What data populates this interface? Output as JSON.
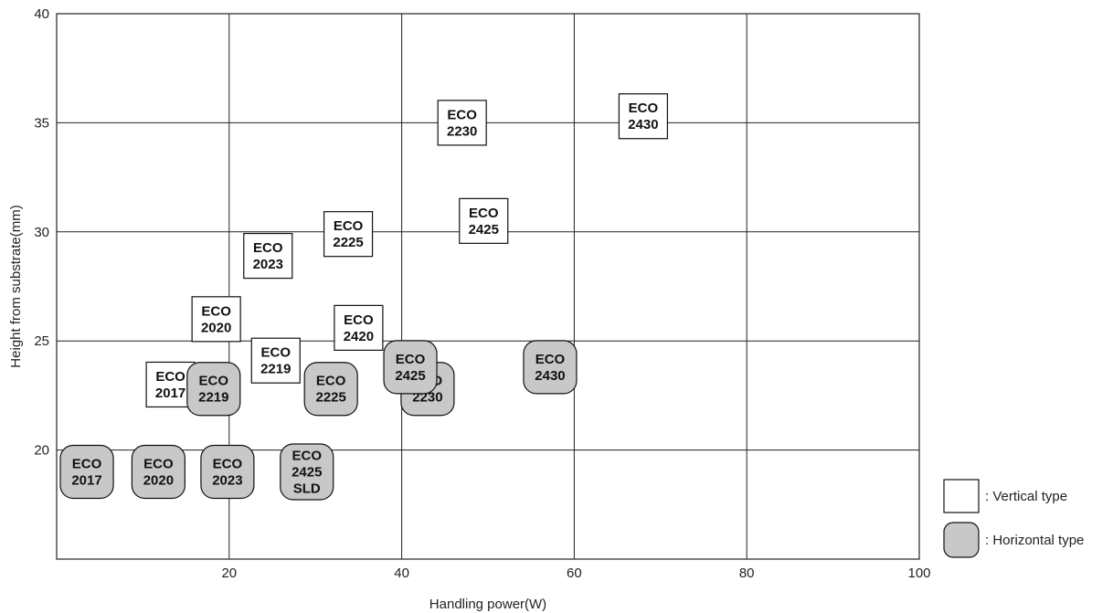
{
  "chart_data": {
    "type": "scatter",
    "title": "",
    "xlabel": "Handling power(W)",
    "ylabel": "Height from substrate(mm)",
    "xlim": [
      0,
      100
    ],
    "ylim": [
      15,
      40
    ],
    "xticks": [
      "20",
      "40",
      "60",
      "80",
      "100"
    ],
    "yticks": [
      "20",
      "25",
      "30",
      "35",
      "40"
    ],
    "grid": true,
    "legend_position": "bottom-right",
    "legend": [
      {
        "symbol": "square-box",
        "label": ": Vertical type",
        "color": "#ffffff"
      },
      {
        "symbol": "rounded-box",
        "label": ": Horizontal type",
        "color": "#c8c8c8"
      }
    ],
    "series": [
      {
        "name": "Vertical type",
        "points": [
          {
            "x": 13.2,
            "y": 23.0,
            "label": [
              "ECO",
              "2017"
            ]
          },
          {
            "x": 18.5,
            "y": 26.0,
            "label": [
              "ECO",
              "2020"
            ]
          },
          {
            "x": 24.5,
            "y": 28.9,
            "label": [
              "ECO",
              "2023"
            ]
          },
          {
            "x": 25.4,
            "y": 24.1,
            "label": [
              "ECO",
              "2219"
            ]
          },
          {
            "x": 33.8,
            "y": 29.9,
            "label": [
              "ECO",
              "2225"
            ]
          },
          {
            "x": 35.0,
            "y": 25.6,
            "label": [
              "ECO",
              "2420"
            ]
          },
          {
            "x": 47.0,
            "y": 35.0,
            "label": [
              "ECO",
              "2230"
            ]
          },
          {
            "x": 49.5,
            "y": 30.5,
            "label": [
              "ECO",
              "2425"
            ]
          },
          {
            "x": 68.0,
            "y": 35.3,
            "label": [
              "ECO",
              "2430"
            ]
          }
        ]
      },
      {
        "name": "Horizontal type",
        "points": [
          {
            "x": 3.5,
            "y": 19.0,
            "label": [
              "ECO",
              "2017"
            ]
          },
          {
            "x": 11.8,
            "y": 19.0,
            "label": [
              "ECO",
              "2020"
            ]
          },
          {
            "x": 19.8,
            "y": 19.0,
            "label": [
              "ECO",
              "2023"
            ]
          },
          {
            "x": 18.2,
            "y": 22.8,
            "label": [
              "ECO",
              "2219"
            ]
          },
          {
            "x": 29.0,
            "y": 19.0,
            "label": [
              "ECO",
              "2425",
              "SLD"
            ]
          },
          {
            "x": 31.8,
            "y": 22.8,
            "label": [
              "ECO",
              "2225"
            ]
          },
          {
            "x": 43.0,
            "y": 22.8,
            "label": [
              "ECO",
              "2230"
            ]
          },
          {
            "x": 41.0,
            "y": 23.8,
            "label": [
              "ECO",
              "2425"
            ]
          },
          {
            "x": 57.2,
            "y": 23.8,
            "label": [
              "ECO",
              "2430"
            ]
          }
        ]
      }
    ]
  }
}
